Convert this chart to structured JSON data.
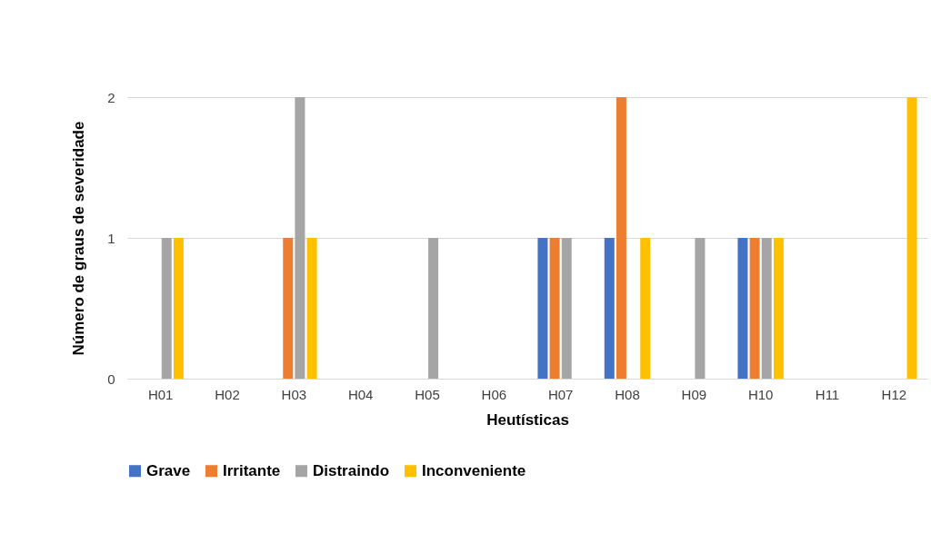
{
  "chart_data": {
    "type": "bar",
    "xlabel": "Heutísticas",
    "ylabel": "Número de graus de severidade",
    "categories": [
      "H01",
      "H02",
      "H03",
      "H04",
      "H05",
      "H06",
      "H07",
      "H08",
      "H09",
      "H10",
      "H11",
      "H12"
    ],
    "series": [
      {
        "name": "Grave",
        "color": "#4472c4",
        "values": [
          0,
          0,
          0,
          0,
          0,
          0,
          1,
          1,
          0,
          1,
          0,
          0
        ]
      },
      {
        "name": "Irritante",
        "color": "#ed7d31",
        "values": [
          0,
          0,
          1,
          0,
          0,
          0,
          1,
          2,
          0,
          1,
          0,
          0
        ]
      },
      {
        "name": "Distraindo",
        "color": "#a5a5a5",
        "values": [
          1,
          0,
          2,
          0,
          1,
          0,
          1,
          0,
          1,
          1,
          0,
          0
        ]
      },
      {
        "name": "Inconveniente",
        "color": "#ffc000",
        "values": [
          1,
          0,
          1,
          0,
          0,
          0,
          0,
          1,
          0,
          1,
          0,
          2
        ]
      }
    ],
    "ylim": [
      0,
      2
    ],
    "yticks": [
      0,
      1,
      2
    ],
    "grid": "y",
    "legend": "bottom"
  }
}
